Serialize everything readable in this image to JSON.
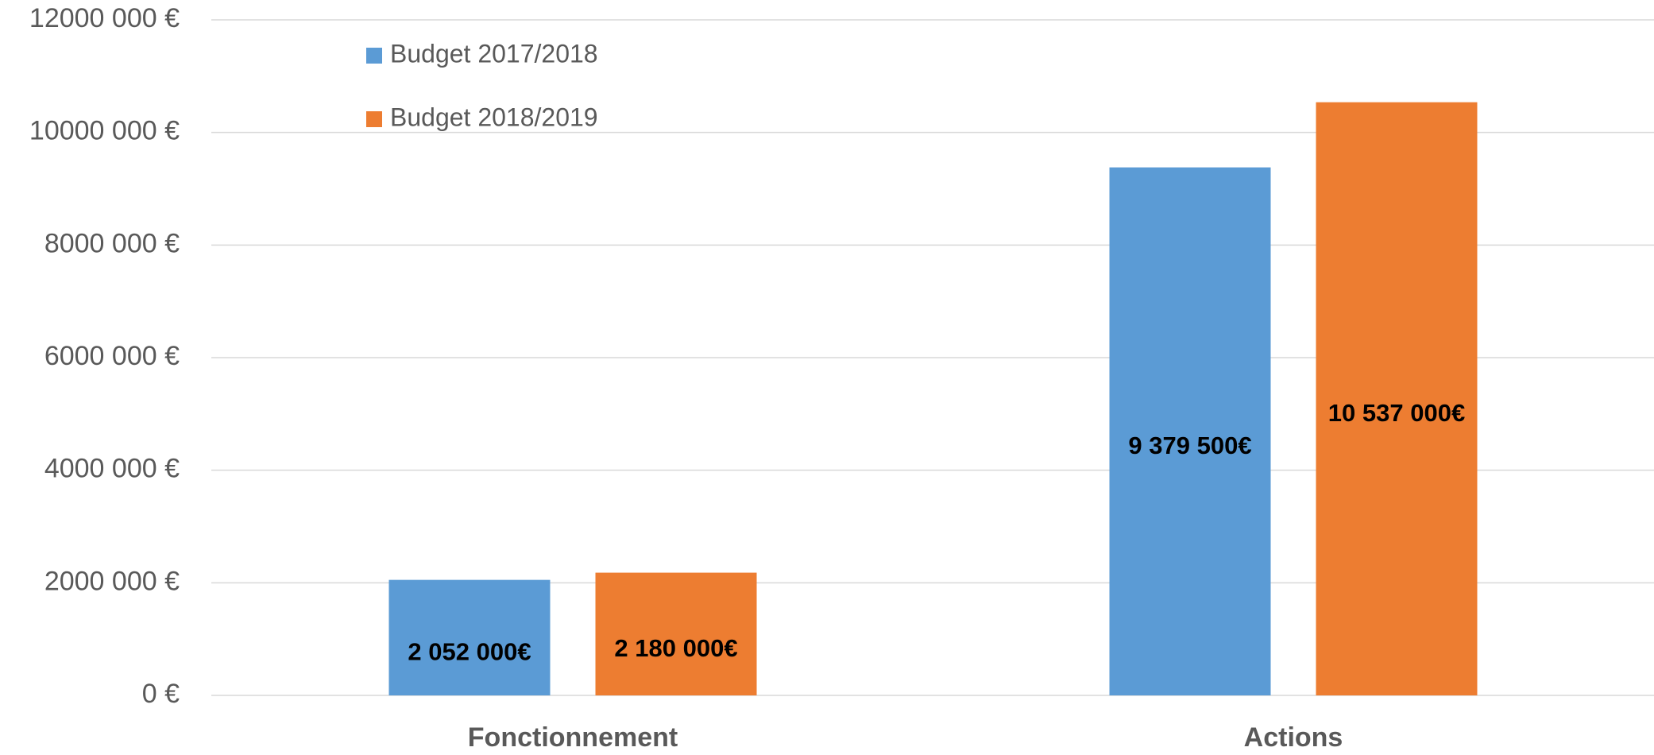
{
  "chart_data": {
    "type": "bar",
    "categories": [
      "Fonctionnement",
      "Actions"
    ],
    "series": [
      {
        "name": "Budget 2017/2018",
        "color": "#5b9bd5",
        "values": [
          2052000,
          9379500
        ],
        "value_labels": [
          "2 052 000€",
          "9 379 500€"
        ]
      },
      {
        "name": "Budget 2018/2019",
        "color": "#ed7d31",
        "values": [
          2180000,
          10537000
        ],
        "value_labels": [
          "2 180 000€",
          "10 537 000€"
        ]
      }
    ],
    "ylim": [
      0,
      12000000
    ],
    "yticks": [
      {
        "value": 0,
        "label": "0 €"
      },
      {
        "value": 2000000,
        "label": "2000 000 €"
      },
      {
        "value": 4000000,
        "label": "4000 000 €"
      },
      {
        "value": 6000000,
        "label": "6000 000 €"
      },
      {
        "value": 8000000,
        "label": "8000 000 €"
      },
      {
        "value": 10000000,
        "label": "10000 000 €"
      },
      {
        "value": 12000000,
        "label": "12000 000 €"
      }
    ],
    "grid": true,
    "legend": "top-left"
  }
}
